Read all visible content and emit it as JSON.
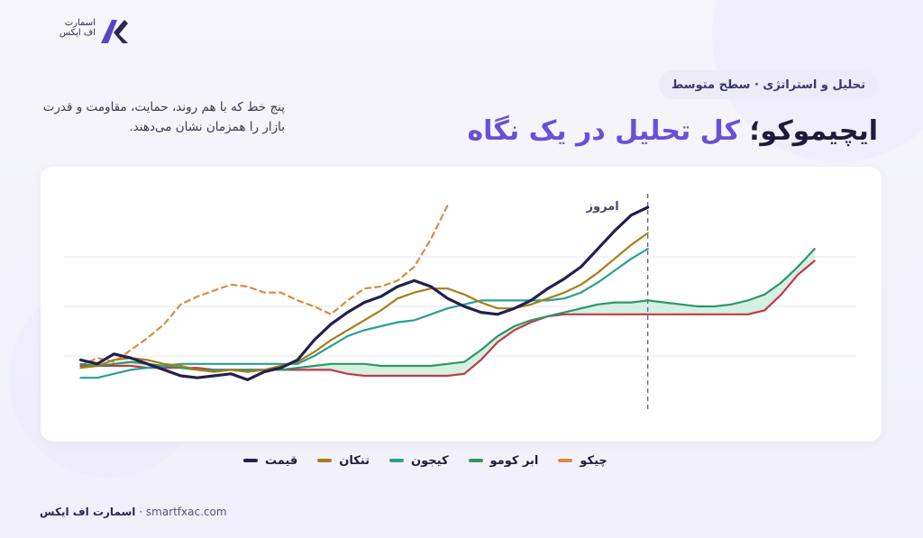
{
  "brand": {
    "logo_text": "اسمارت اف ایکس",
    "site": "smartfxac.com"
  },
  "header": {
    "pill": "تحلیل و استراتژی · سطح متوسط",
    "title_dark": "ایچیموکو؛",
    "title_accent": "کل تحلیل در یک نگاه",
    "description": "پنج خط که با هم روند، حمایت، مقاومت و قدرت بازار را همزمان نشان می‌دهند."
  },
  "chart_data": {
    "type": "line",
    "annotation": "امروز",
    "today_x": 70,
    "grid": true,
    "ylim": [
      0,
      10
    ],
    "xlim": [
      0,
      95
    ],
    "series": [
      {
        "name": "قیمت",
        "color": "#23204f",
        "style": "solid",
        "x": [
          2,
          4,
          6,
          8,
          10,
          12,
          14,
          16,
          18,
          20,
          22,
          24,
          26,
          28,
          30,
          32,
          34,
          36,
          38,
          40,
          42,
          44,
          46,
          48,
          50,
          52,
          54,
          56,
          58,
          60,
          62,
          64,
          66,
          68,
          70
        ],
        "y": [
          2.3,
          2.1,
          2.6,
          2.4,
          2.1,
          1.8,
          1.5,
          1.4,
          1.5,
          1.6,
          1.3,
          1.7,
          1.9,
          2.3,
          3.3,
          4.1,
          4.7,
          5.2,
          5.5,
          6.0,
          6.3,
          6.0,
          5.4,
          5.0,
          4.7,
          4.6,
          4.9,
          5.3,
          5.9,
          6.4,
          7.0,
          7.9,
          8.8,
          9.6,
          10.0
        ]
      },
      {
        "name": "تنکان",
        "color": "#a77d18",
        "style": "solid",
        "x": [
          2,
          4,
          6,
          8,
          10,
          12,
          14,
          16,
          18,
          20,
          22,
          24,
          26,
          28,
          30,
          32,
          34,
          36,
          38,
          40,
          42,
          44,
          46,
          48,
          50,
          52,
          54,
          56,
          58,
          60,
          62,
          64,
          66,
          68,
          70
        ],
        "y": [
          1.9,
          2.0,
          2.3,
          2.4,
          2.3,
          2.1,
          2.0,
          1.8,
          1.7,
          1.8,
          1.7,
          1.8,
          2.0,
          2.2,
          2.7,
          3.3,
          3.8,
          4.3,
          4.8,
          5.4,
          5.7,
          5.9,
          5.9,
          5.6,
          5.2,
          4.9,
          4.9,
          5.1,
          5.4,
          5.7,
          6.1,
          6.7,
          7.4,
          8.1,
          8.7
        ]
      },
      {
        "name": "کیجون",
        "color": "#29a092",
        "style": "solid",
        "x": [
          2,
          4,
          6,
          8,
          10,
          12,
          14,
          16,
          18,
          20,
          22,
          24,
          26,
          28,
          30,
          32,
          34,
          36,
          38,
          40,
          42,
          44,
          46,
          48,
          50,
          52,
          54,
          56,
          58,
          60,
          62,
          64,
          66,
          68,
          70
        ],
        "y": [
          1.4,
          1.4,
          1.6,
          1.8,
          1.9,
          2.0,
          2.1,
          2.1,
          2.1,
          2.1,
          2.1,
          2.1,
          2.1,
          2.1,
          2.5,
          3.0,
          3.5,
          3.8,
          4.0,
          4.2,
          4.3,
          4.6,
          4.9,
          5.1,
          5.3,
          5.3,
          5.3,
          5.3,
          5.3,
          5.4,
          5.7,
          6.2,
          6.8,
          7.4,
          7.9
        ]
      },
      {
        "name": "ابر کومو",
        "color": "#2f9567",
        "style": "solid",
        "x": [
          2,
          4,
          6,
          8,
          10,
          12,
          14,
          16,
          18,
          20,
          22,
          24,
          26,
          28,
          30,
          32,
          34,
          36,
          38,
          40,
          42,
          44,
          46,
          48,
          50,
          52,
          54,
          56,
          58,
          60,
          62,
          64,
          66,
          68,
          70,
          72,
          74,
          76,
          78,
          80,
          82,
          84,
          86,
          88,
          90
        ],
        "y": [
          2.1,
          2.0,
          2.1,
          2.2,
          2.1,
          2.0,
          1.9,
          1.8,
          1.8,
          1.8,
          1.8,
          1.8,
          1.8,
          1.9,
          2.0,
          2.1,
          2.1,
          2.1,
          2.0,
          2.0,
          2.0,
          2.0,
          2.1,
          2.2,
          2.8,
          3.5,
          4.0,
          4.3,
          4.5,
          4.7,
          4.9,
          5.1,
          5.2,
          5.2,
          5.3,
          5.2,
          5.1,
          5.0,
          5.0,
          5.1,
          5.3,
          5.6,
          6.2,
          7.0,
          7.9
        ]
      },
      {
        "name": "ابر کومو - خط دوم",
        "color": "#c0394a",
        "style": "solid",
        "x": [
          2,
          4,
          6,
          8,
          10,
          12,
          14,
          16,
          18,
          20,
          22,
          24,
          26,
          28,
          30,
          32,
          34,
          36,
          38,
          40,
          42,
          44,
          46,
          48,
          50,
          52,
          54,
          56,
          58,
          60,
          62,
          64,
          66,
          68,
          70,
          72,
          74,
          76,
          78,
          80,
          82,
          84,
          86,
          88,
          90
        ],
        "y": [
          2.0,
          2.0,
          2.0,
          2.0,
          1.9,
          1.9,
          1.9,
          1.9,
          1.8,
          1.8,
          1.8,
          1.8,
          1.8,
          1.8,
          1.8,
          1.8,
          1.6,
          1.5,
          1.5,
          1.5,
          1.5,
          1.5,
          1.5,
          1.6,
          2.3,
          3.2,
          3.8,
          4.2,
          4.5,
          4.6,
          4.6,
          4.6,
          4.6,
          4.6,
          4.6,
          4.6,
          4.6,
          4.6,
          4.6,
          4.6,
          4.6,
          4.8,
          5.6,
          6.6,
          7.3
        ]
      },
      {
        "name": "چیکو",
        "color": "#dc8a3e",
        "style": "dashed",
        "x": [
          2,
          4,
          6,
          8,
          10,
          12,
          14,
          16,
          18,
          20,
          22,
          24,
          26,
          28,
          30,
          32,
          34,
          36,
          38,
          40,
          42,
          44,
          46
        ],
        "y": [
          2.0,
          2.4,
          2.2,
          2.8,
          3.4,
          4.1,
          5.1,
          5.5,
          5.8,
          6.1,
          6.0,
          5.7,
          5.7,
          5.3,
          5.0,
          4.6,
          5.3,
          5.9,
          6.0,
          6.3,
          7.0,
          8.4,
          10.1
        ]
      }
    ],
    "legend": [
      {
        "label": "قیمت",
        "color": "#23204f"
      },
      {
        "label": "تنکان",
        "color": "#a77d18"
      },
      {
        "label": "کیجون",
        "color": "#29a092"
      },
      {
        "label": "ابر کومو",
        "color": "#2f9567"
      },
      {
        "label": "چیکو",
        "color": "#dc8a3e"
      }
    ],
    "cloud_colors": {
      "bull": "#cdeedd",
      "bear": "#f5d1d8"
    }
  }
}
